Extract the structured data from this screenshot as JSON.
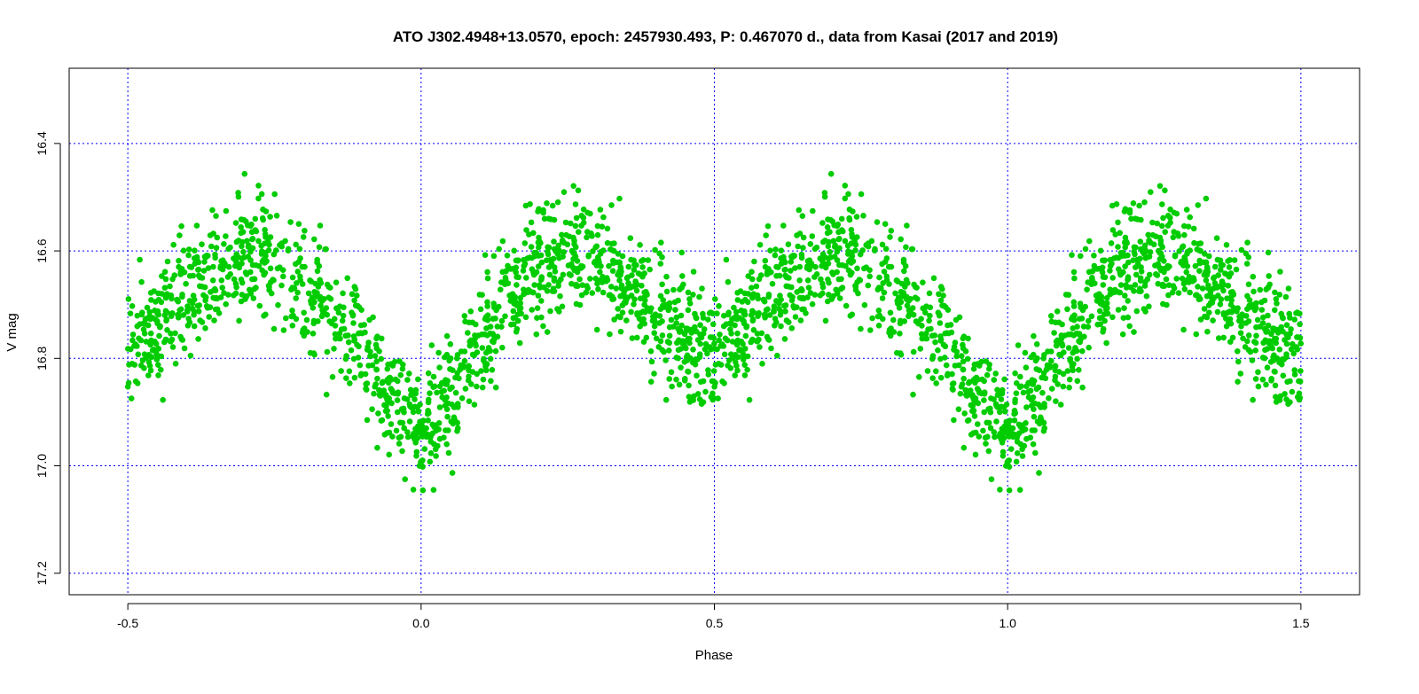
{
  "chart_data": {
    "type": "scatter",
    "title": "ATO J302.4948+13.0570, epoch: 2457930.493, P: 0.467070 d., data from Kasai (2017 and 2019)",
    "xlabel": "Phase",
    "ylabel": "V mag",
    "xlim": [
      -0.6,
      1.6
    ],
    "ylim": [
      17.24,
      16.26
    ],
    "y_reversed": true,
    "x_ticks": [
      -0.5,
      0.0,
      0.5,
      1.0,
      1.5
    ],
    "x_tick_labels": [
      "-0.5",
      "0.0",
      "0.5",
      "1.0",
      "1.5"
    ],
    "y_ticks": [
      16.4,
      16.6,
      16.8,
      17.0,
      17.2
    ],
    "y_tick_labels": [
      "16.4",
      "16.6",
      "16.8",
      "17.0",
      "17.2"
    ],
    "grid": true,
    "grid_color": "#0000ff",
    "point_color": "#00cc00",
    "phased_repeat": true,
    "n_points_per_cycle": 1400,
    "light_curve_profile": {
      "phase": [
        0.0,
        0.05,
        0.1,
        0.15,
        0.2,
        0.25,
        0.3,
        0.35,
        0.4,
        0.45,
        0.5,
        0.55,
        0.6,
        0.65,
        0.7,
        0.75,
        0.8,
        0.85,
        0.9,
        0.95,
        1.0
      ],
      "mag": [
        16.93,
        16.86,
        16.76,
        16.68,
        16.62,
        16.6,
        16.62,
        16.66,
        16.71,
        16.76,
        16.79,
        16.74,
        16.68,
        16.63,
        16.61,
        16.62,
        16.66,
        16.72,
        16.78,
        16.88,
        16.93
      ]
    },
    "scatter_sigma": 0.055
  }
}
